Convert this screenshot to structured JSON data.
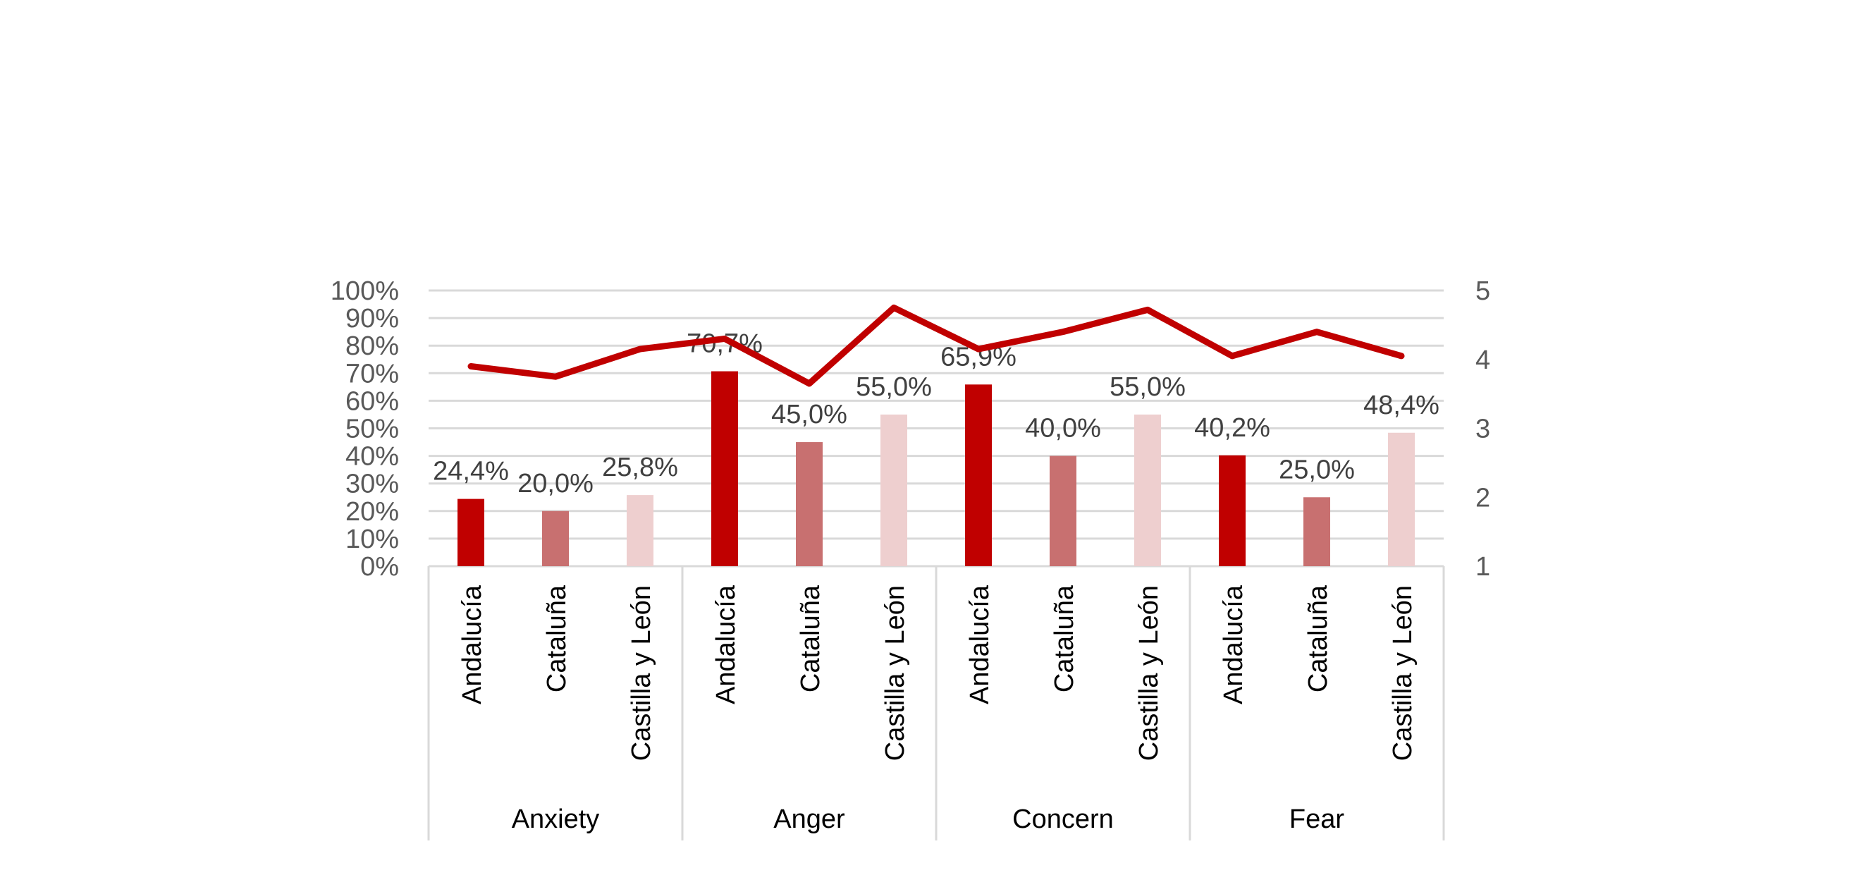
{
  "chart_data": {
    "type": "bar",
    "title": "",
    "groups": [
      {
        "name": "Anxiety",
        "categories": [
          "Andalucía",
          "Cataluña",
          "Castilla y León"
        ]
      },
      {
        "name": "Anger",
        "categories": [
          "Andalucía",
          "Cataluña",
          "Castilla y León"
        ]
      },
      {
        "name": "Concern",
        "categories": [
          "Andalucía",
          "Cataluña",
          "Castilla y León"
        ]
      },
      {
        "name": "Fear",
        "categories": [
          "Andalucía",
          "Cataluña",
          "Castilla y León"
        ]
      }
    ],
    "bars": {
      "values": [
        24.4,
        20.0,
        25.8,
        70.7,
        45.0,
        55.0,
        65.9,
        40.0,
        55.0,
        40.2,
        25.0,
        48.4
      ],
      "labels": [
        "24,4%",
        "20,0%",
        "25,8%",
        "70,7%",
        "45,0%",
        "55,0%",
        "65,9%",
        "40,0%",
        "55,0%",
        "40,2%",
        "25,0%",
        "48,4%"
      ],
      "colors_by_region": [
        "#C00000",
        "#C87070",
        "#EECFCF"
      ]
    },
    "line": {
      "axis": "secondary",
      "values": [
        3.9,
        3.75,
        4.15,
        4.3,
        3.65,
        4.75,
        4.15,
        4.4,
        4.72,
        4.05,
        4.4,
        4.05
      ],
      "color": "#C00000"
    },
    "y_left": {
      "ylim": [
        0,
        100
      ],
      "ticks": [
        "0%",
        "10%",
        "20%",
        "30%",
        "40%",
        "50%",
        "60%",
        "70%",
        "80%",
        "90%",
        "100%"
      ]
    },
    "y_right": {
      "ylim": [
        1,
        5
      ],
      "ticks": [
        "1",
        "2",
        "3",
        "4",
        "5"
      ]
    },
    "grid": true,
    "legend": "none"
  }
}
